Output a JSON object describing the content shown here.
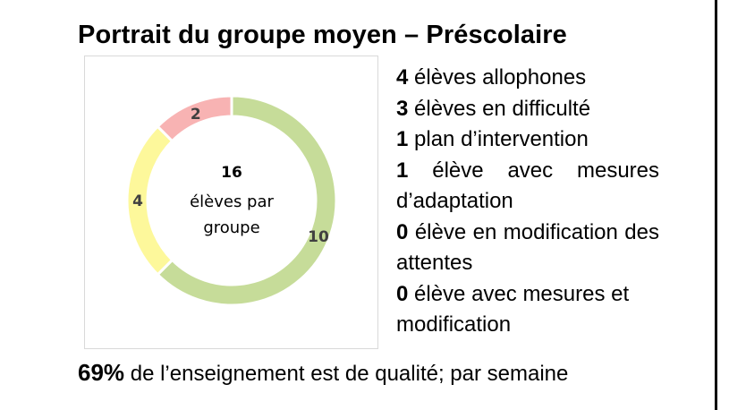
{
  "title": "Portrait du groupe moyen – Préscolaire",
  "chart_data": {
    "type": "pie",
    "variant": "donut",
    "slices": [
      {
        "label": "10",
        "value": 10,
        "color": "#c6dc99"
      },
      {
        "label": "4",
        "value": 4,
        "color": "#fdf89b"
      },
      {
        "label": "2",
        "value": 2,
        "color": "#f8b3b3"
      }
    ],
    "center_value": "16",
    "center_text_line1": "élèves par",
    "center_text_line2": "groupe"
  },
  "stats": [
    {
      "count": "4",
      "text": "élèves allophones"
    },
    {
      "count": "3",
      "text": "élèves en difficulté"
    },
    {
      "count": "1",
      "text": "plan d’intervention"
    },
    {
      "count": "1",
      "text": "élève avec mesures d’adaptation"
    },
    {
      "count": "0",
      "text": "élève en modification des attentes"
    },
    {
      "count": "0",
      "text": "élève avec mesures et modification"
    }
  ],
  "footer": {
    "percent": "69%",
    "text": "de l’enseignement est de qualité; par semaine"
  }
}
